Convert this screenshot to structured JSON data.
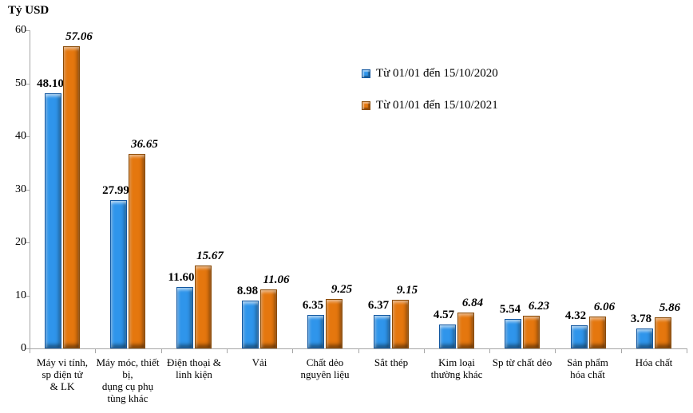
{
  "title": "Tỷ USD",
  "chart_data": {
    "type": "bar",
    "title": "Tỷ USD",
    "ylabel": "Tỷ USD",
    "xlabel": "",
    "ylim": [
      0,
      60
    ],
    "yticks": [
      0,
      10,
      20,
      30,
      40,
      50,
      60
    ],
    "grid": false,
    "legend_position": "upper-right-inside",
    "categories": [
      "Máy vi tính, sp điện tử & LK",
      "Máy móc, thiết bị, dụng cụ phụ tùng khác",
      "Điện thoại & linh kiện",
      "Vải",
      "Chất dẻo nguyên liệu",
      "Sắt thép",
      "Kim loại thường khác",
      "Sp từ chất dẻo",
      "Sản phẩm hóa chất",
      "Hóa chất"
    ],
    "category_lines": [
      [
        "Máy vi tính,",
        "sp điện tử",
        "& LK"
      ],
      [
        "Máy móc, thiết",
        "bị,",
        "dụng cụ phụ",
        "tùng khác"
      ],
      [
        "Điện thoại &",
        "linh kiện"
      ],
      [
        "Vải"
      ],
      [
        "Chất dẻo",
        "nguyên liệu"
      ],
      [
        "Sắt thép"
      ],
      [
        "Kim loại",
        "thường khác"
      ],
      [
        "Sp từ chất dẻo"
      ],
      [
        "Sản phẩm",
        "hóa chất"
      ],
      [
        "Hóa chất"
      ]
    ],
    "series": [
      {
        "name": "Từ 01/01 đến 15/10/2020",
        "color": "#2f95eb",
        "values": [
          48.1,
          27.99,
          11.6,
          8.98,
          6.35,
          6.37,
          4.57,
          5.54,
          4.32,
          3.78
        ],
        "value_labels": [
          "48.10",
          "27.99",
          "11.60",
          "8.98",
          "6.35",
          "6.37",
          "4.57",
          "5.54",
          "4.32",
          "3.78"
        ]
      },
      {
        "name": "Từ 01/01 đến 15/10/2021",
        "color": "#e5770e",
        "values": [
          57.06,
          36.65,
          15.67,
          11.06,
          9.25,
          9.15,
          6.84,
          6.23,
          6.06,
          5.86
        ],
        "value_labels": [
          "57.06",
          "36.65",
          "15.67",
          "11.06",
          "9.25",
          "9.15",
          "6.84",
          "6.23",
          "6.06",
          "5.86"
        ]
      }
    ]
  },
  "colors": {
    "series_2020": "#2f95eb",
    "series_2021": "#e5770e",
    "axis": "#a6a6a6",
    "text": "#000000",
    "background": "#ffffff"
  }
}
